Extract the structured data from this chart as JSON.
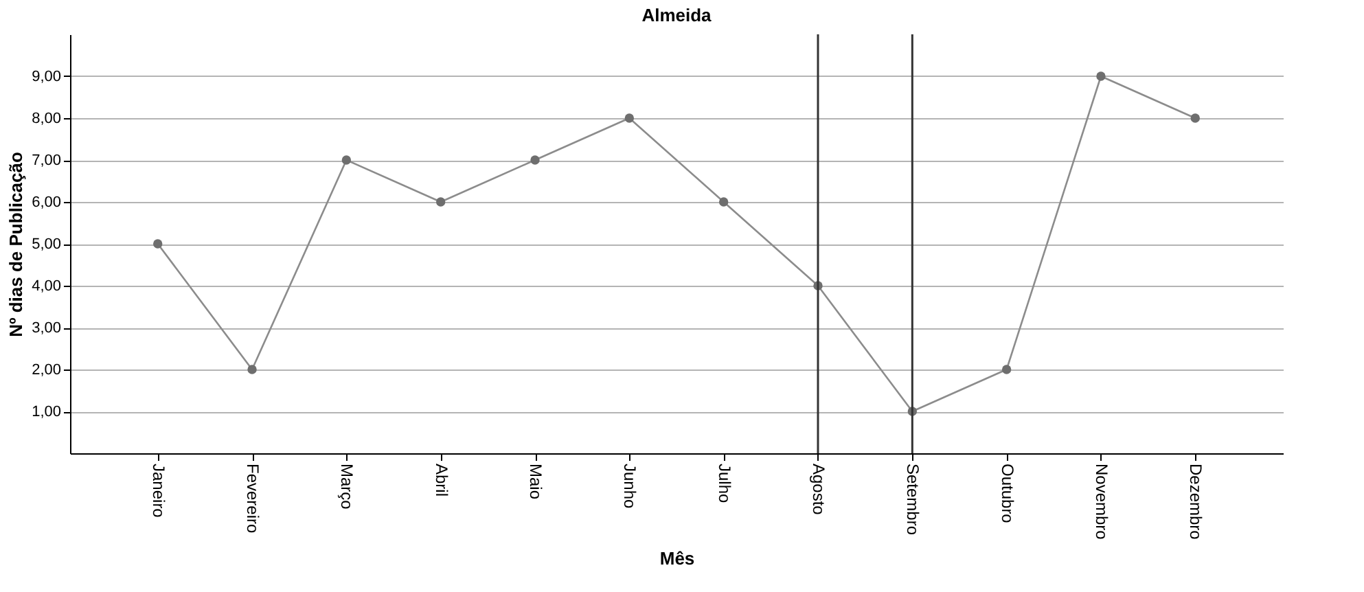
{
  "chart_data": {
    "type": "line",
    "title": "Almeida",
    "xlabel": "Mês",
    "ylabel": "Nº dias de Publicação",
    "categories": [
      "Janeiro",
      "Fevereiro",
      "Março",
      "Abril",
      "Maio",
      "Junho",
      "Julho",
      "Agosto",
      "Setembro",
      "Outubro",
      "Novembro",
      "Dezembro"
    ],
    "series": [
      {
        "color": "#8c8c8c",
        "values": [
          5,
          2,
          7,
          6,
          7,
          8,
          6,
          4,
          1,
          2,
          9,
          8
        ]
      }
    ],
    "ylim": [
      0,
      10
    ],
    "yticks": [
      {
        "value": 1,
        "label": "1,00"
      },
      {
        "value": 2,
        "label": "2,00"
      },
      {
        "value": 3,
        "label": "3,00"
      },
      {
        "value": 4,
        "label": "4,00"
      },
      {
        "value": 5,
        "label": "5,00"
      },
      {
        "value": 6,
        "label": "6,00"
      },
      {
        "value": 7,
        "label": "7,00"
      },
      {
        "value": 8,
        "label": "8,00"
      },
      {
        "value": 9,
        "label": "9,00"
      }
    ],
    "ref_lines": [
      {
        "axis": "x",
        "value": "Agosto",
        "color": "#333333"
      },
      {
        "axis": "x",
        "value": "Setembro",
        "color": "#333333"
      }
    ],
    "grid": "y",
    "marker": "circle",
    "line_style": "solid"
  }
}
